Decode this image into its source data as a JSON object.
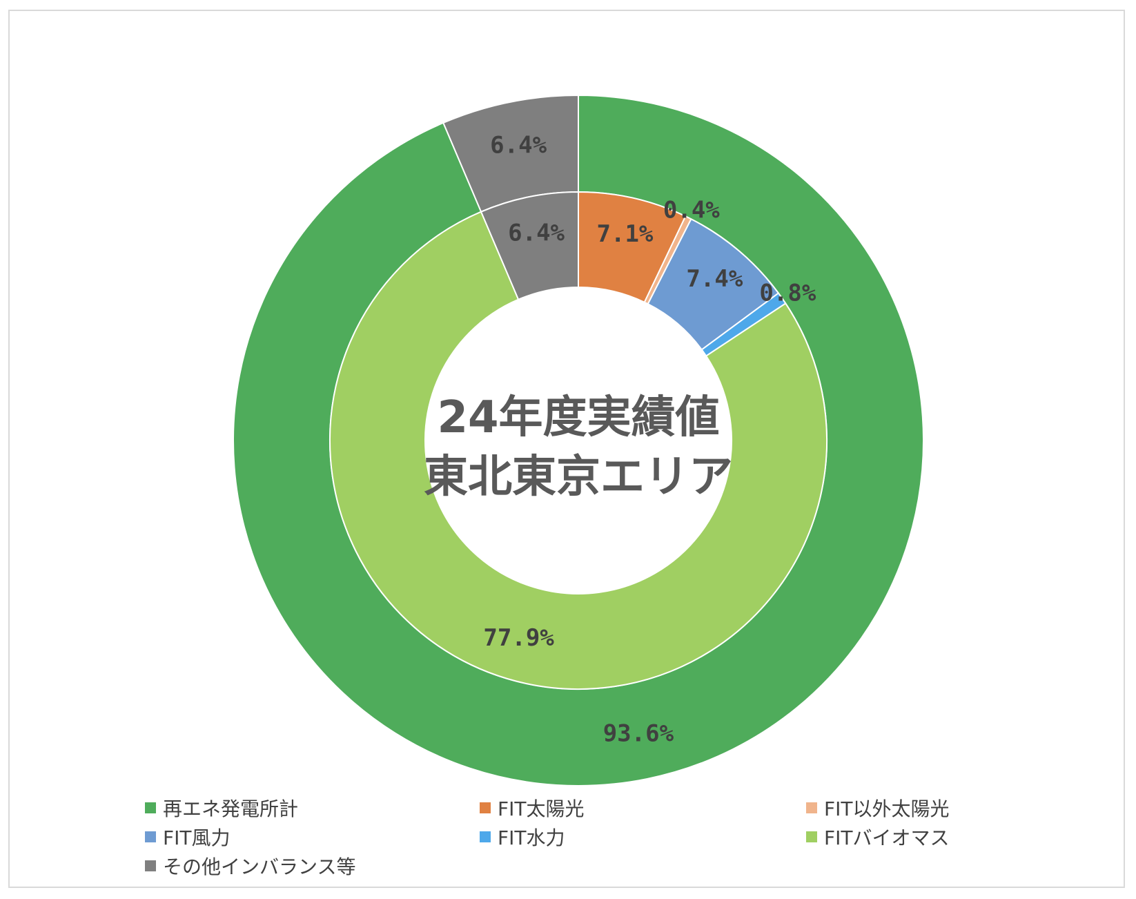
{
  "chart_data": {
    "type": "donut",
    "center_title": [
      "24年度実績値",
      "東北東京エリア"
    ],
    "outer_ring": [
      {
        "name": "再エネ発電所計",
        "value": 93.6,
        "label": "93.6%",
        "color": "#4fac5b"
      },
      {
        "name": "その他インバランス等",
        "value": 6.4,
        "label": "6.4%",
        "color": "#7f7f7f"
      }
    ],
    "inner_ring": [
      {
        "name": "FIT太陽光",
        "value": 7.1,
        "label": "7.1%",
        "color": "#e08142"
      },
      {
        "name": "FIT以外太陽光",
        "value": 0.4,
        "label": "0.4%",
        "color": "#f0b48c"
      },
      {
        "name": "FIT風力",
        "value": 7.4,
        "label": "7.4%",
        "color": "#6e9bd2"
      },
      {
        "name": "FIT水力",
        "value": 0.8,
        "label": "0.8%",
        "color": "#4ea8ea"
      },
      {
        "name": "FITバイオマス",
        "value": 77.9,
        "label": "77.9%",
        "color": "#a0cf62"
      },
      {
        "name": "その他インバランス等",
        "value": 6.4,
        "label": "6.4%",
        "color": "#7f7f7f"
      }
    ],
    "legend": {
      "placement": "bottom",
      "items": [
        {
          "label": "再エネ発電所計",
          "color": "#4fac5b"
        },
        {
          "label": "FIT太陽光",
          "color": "#e08142"
        },
        {
          "label": "FIT以外太陽光",
          "color": "#f0b48c"
        },
        {
          "label": "FIT風力",
          "color": "#6e9bd2"
        },
        {
          "label": "FIT水力",
          "color": "#4ea8ea"
        },
        {
          "label": "FITバイオマス",
          "color": "#a0cf62"
        },
        {
          "label": "その他インバランス等",
          "color": "#7f7f7f"
        }
      ]
    }
  }
}
